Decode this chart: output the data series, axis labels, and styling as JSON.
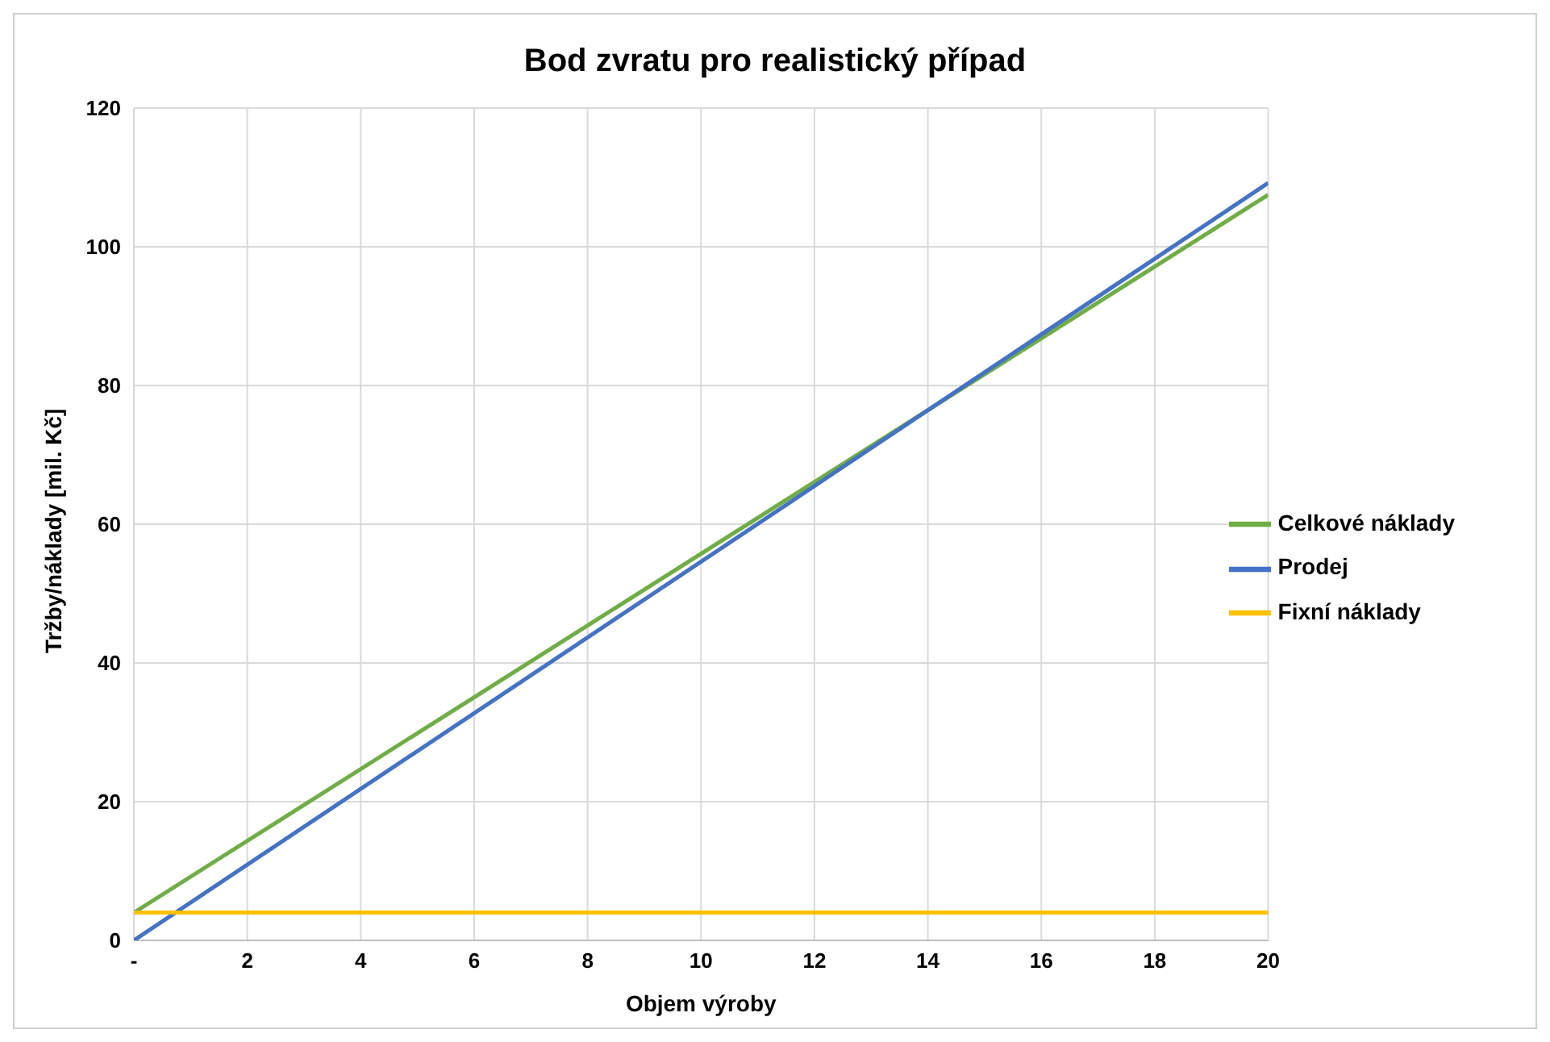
{
  "chart_data": {
    "type": "line",
    "title": "Bod zvratu pro realistický případ",
    "xlabel": "Objem výroby",
    "ylabel": "Tržby/náklady [mil. Kč]",
    "series": [
      {
        "name": "Celkové náklady",
        "color": "#70ad47",
        "values": [
          4,
          107.5
        ]
      },
      {
        "name": "Prodej",
        "color": "#4472c4",
        "values": [
          0,
          109.2
        ]
      },
      {
        "name": "Fixní náklady",
        "color": "#ffc000",
        "values": [
          4,
          4
        ]
      }
    ],
    "x": [
      0,
      20
    ],
    "xlim": [
      0,
      20
    ],
    "xticks": [
      {
        "value": 0,
        "label": "-"
      },
      2,
      4,
      6,
      8,
      10,
      12,
      14,
      16,
      18,
      20
    ],
    "ylim": [
      0,
      120
    ],
    "yticks": [
      0,
      20,
      40,
      60,
      80,
      100,
      120
    ],
    "grid": true,
    "legend": "right",
    "marker": "none",
    "line_style": "solid"
  }
}
